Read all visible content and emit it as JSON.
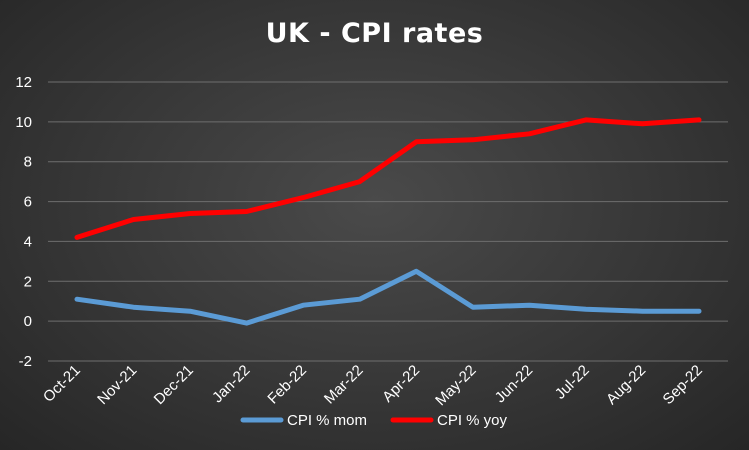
{
  "chart_data": {
    "type": "line",
    "title": "UK - CPI rates",
    "xlabel": "",
    "ylabel": "",
    "categories": [
      "Oct-21",
      "Nov-21",
      "Dec-21",
      "Jan-22",
      "Feb-22",
      "Mar-22",
      "Apr-22",
      "May-22",
      "Jun-22",
      "Jul-22",
      "Aug-22",
      "Sep-22"
    ],
    "ylim": [
      -2,
      12
    ],
    "yticks": [
      -2,
      0,
      2,
      4,
      6,
      8,
      10,
      12
    ],
    "grid": true,
    "legend_position": "bottom",
    "series": [
      {
        "name": "CPI % mom",
        "color": "#5b9bd5",
        "values": [
          1.1,
          0.7,
          0.5,
          -0.1,
          0.8,
          1.1,
          2.5,
          0.7,
          0.8,
          0.6,
          0.5,
          0.5
        ]
      },
      {
        "name": "CPI % yoy",
        "color": "#ff0000",
        "values": [
          4.2,
          5.1,
          5.4,
          5.5,
          6.2,
          7.0,
          9.0,
          9.1,
          9.4,
          10.1,
          9.9,
          10.1
        ]
      }
    ]
  }
}
